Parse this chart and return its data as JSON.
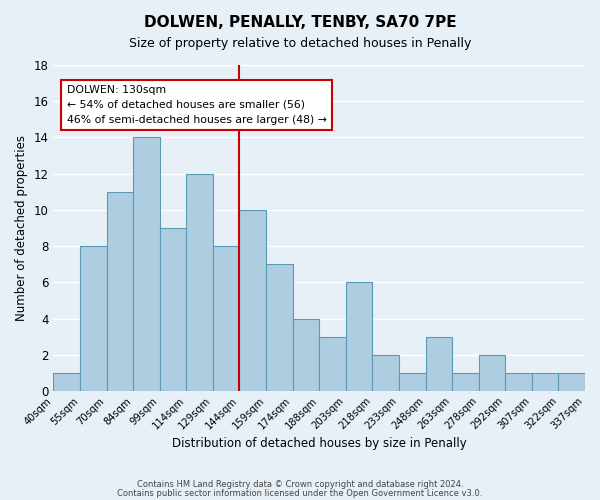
{
  "title": "DOLWEN, PENALLY, TENBY, SA70 7PE",
  "subtitle": "Size of property relative to detached houses in Penally",
  "xlabel": "Distribution of detached houses by size in Penally",
  "ylabel": "Number of detached properties",
  "footer_lines": [
    "Contains HM Land Registry data © Crown copyright and database right 2024.",
    "Contains public sector information licensed under the Open Government Licence v3.0."
  ],
  "bin_edges": [
    40,
    55,
    70,
    84,
    99,
    114,
    129,
    144,
    159,
    174,
    188,
    203,
    218,
    233,
    248,
    263,
    278,
    292,
    307,
    322,
    337
  ],
  "bin_labels": [
    "40sqm",
    "55sqm",
    "70sqm",
    "84sqm",
    "99sqm",
    "114sqm",
    "129sqm",
    "144sqm",
    "159sqm",
    "174sqm",
    "188sqm",
    "203sqm",
    "218sqm",
    "233sqm",
    "248sqm",
    "263sqm",
    "278sqm",
    "292sqm",
    "307sqm",
    "322sqm",
    "337sqm"
  ],
  "bar_heights": [
    1,
    8,
    11,
    14,
    9,
    12,
    8,
    10,
    7,
    4,
    3,
    6,
    2,
    1,
    3,
    1,
    2,
    1,
    1,
    1
  ],
  "bar_color": "#aecde1",
  "bar_edge_color": "#5b9ab5",
  "ylim": [
    0,
    18
  ],
  "yticks": [
    0,
    2,
    4,
    6,
    8,
    10,
    12,
    14,
    16,
    18
  ],
  "marker_bin_index": 6,
  "marker_line_color": "#cc0000",
  "annotation_line1": "DOLWEN: 130sqm",
  "annotation_line2": "← 54% of detached houses are smaller (56)",
  "annotation_line3": "46% of semi-detached houses are larger (48) →",
  "annotation_box_color": "#ffffff",
  "annotation_box_edge": "#cc0000",
  "background_color": "#e8f0f7",
  "grid_color": "#ffffff"
}
